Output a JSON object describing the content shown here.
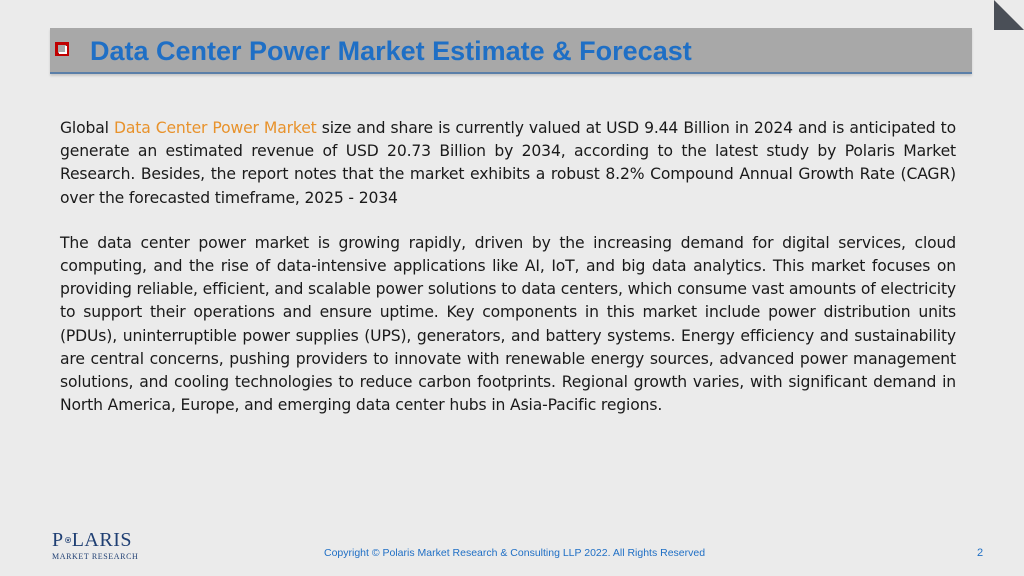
{
  "slide": {
    "title": "Data Center Power Market Estimate & Forecast",
    "page_number": "2"
  },
  "intro": {
    "prefix": "Global ",
    "link_text": "Data Center Power Market",
    "suffix": " size and share is currently valued at USD 9.44 Billion in 2024 and is anticipated to generate an estimated revenue of USD 20.73 Billion by 2034, according to the latest study by Polaris Market Research. Besides, the report notes that the market exhibits a robust 8.2% Compound Annual Growth Rate (CAGR) over the forecasted timeframe, 2025 - 2034"
  },
  "description": "The data center power market is growing rapidly, driven by the increasing demand for digital services, cloud computing, and the rise of data-intensive applications like AI, IoT, and big data analytics. This market focuses on providing reliable, efficient, and scalable power solutions to data centers, which consume vast amounts of electricity to support their operations and ensure uptime. Key components in this market include power distribution units (PDUs), uninterruptible power supplies (UPS), generators, and battery systems. Energy efficiency and sustainability are central concerns, pushing providers to innovate with renewable energy sources, advanced power management solutions, and cooling technologies to reduce carbon footprints. Regional growth varies, with significant demand in North America, Europe, and emerging data center hubs in Asia-Pacific regions.",
  "logo": {
    "word_left": "P",
    "word_right": "LARIS",
    "subtitle": "MARKET RESEARCH"
  },
  "footer": {
    "copyright": "Copyright © Polaris Market Research & Consulting LLP 2022. All Rights Reserved"
  },
  "colors": {
    "title": "#1f6fc5",
    "link": "#e8922b",
    "bullet": "#c00000",
    "logo": "#1f3f73"
  }
}
